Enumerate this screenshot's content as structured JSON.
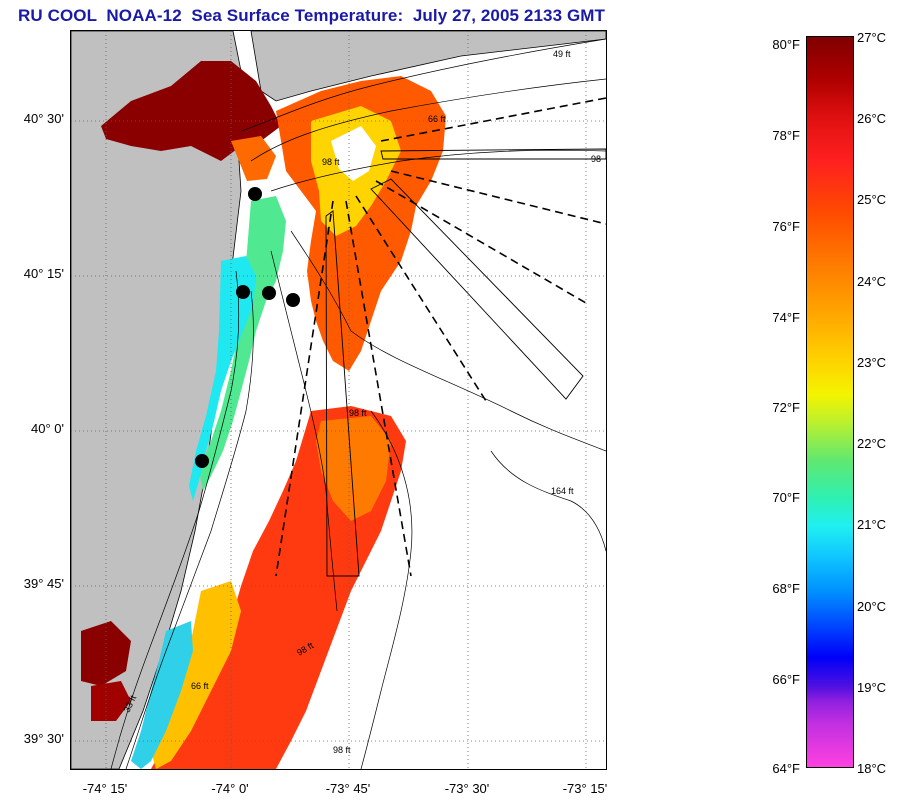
{
  "title": "RU COOL  NOAA-12  Sea Surface Temperature:  July 27, 2005 2133 GMT",
  "map": {
    "lat_ticks": [
      "40° 30'",
      "40° 15'",
      "40° 0'",
      "39° 45'",
      "39° 30'"
    ],
    "lon_ticks": [
      "-74° 15'",
      "-74° 0'",
      "-73° 45'",
      "-73° 30'",
      "-73° 15'"
    ],
    "depth_labels": [
      "49 ft",
      "66 ft",
      "98",
      "98 ft",
      "98 ft",
      "164 ft",
      "66 ft",
      "33 ft",
      "98 ft",
      "98 ft"
    ],
    "colors": {
      "land": "#c0c0c0",
      "water_no_data": "#ffffff",
      "station": "#000000"
    }
  },
  "colorbar": {
    "fahrenheit": [
      "80°F",
      "78°F",
      "76°F",
      "74°F",
      "72°F",
      "70°F",
      "68°F",
      "66°F",
      "64°F"
    ],
    "celsius": [
      "27°C",
      "26°C",
      "25°C",
      "24°C",
      "23°C",
      "22°C",
      "21°C",
      "20°C",
      "19°C",
      "18°C"
    ]
  }
}
